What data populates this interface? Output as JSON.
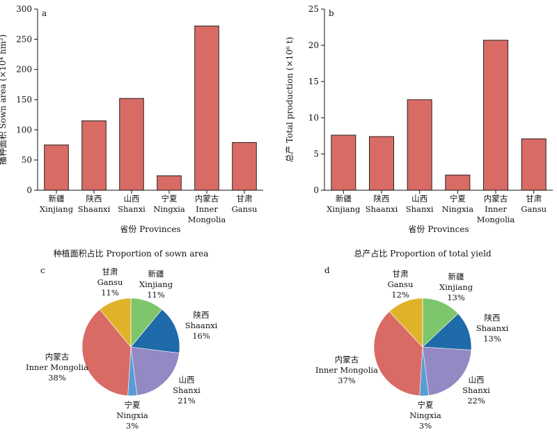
{
  "colors": {
    "bar_a": "#d96b65",
    "bar_b": "#d96b65",
    "axis": "#111111",
    "pie": [
      "#7dc66b",
      "#1f6aa9",
      "#9389c3",
      "#5b9bd5",
      "#d96b65",
      "#e0b22a"
    ]
  },
  "chart_data": [
    {
      "type": "bar",
      "panel": "a",
      "categories": [
        "新疆\nXinjiang",
        "陕西\nShaanxi",
        "山西\nShanxi",
        "宁夏\nNingxia",
        "内蒙古\nInner\nMongolia",
        "甘肃\nGansu"
      ],
      "values": [
        75,
        115,
        152,
        24,
        272,
        79
      ],
      "ylabel_cn": "播种面积",
      "ylabel_en": "Sown area (×10⁴ hm²)",
      "xlabel": "省份 Provinces",
      "ylim": [
        0,
        300
      ],
      "yticks": [
        0,
        50,
        100,
        150,
        200,
        250,
        300
      ]
    },
    {
      "type": "bar",
      "panel": "b",
      "categories": [
        "新疆\nXinjiang",
        "陕西\nShaanxi",
        "山西\nShanxi",
        "宁夏\nNingxia",
        "内蒙古\nInner\nMongolia",
        "甘肃\nGansu"
      ],
      "values": [
        7.6,
        7.4,
        12.5,
        2.1,
        20.7,
        7.1
      ],
      "ylabel_cn": "总产",
      "ylabel_en": "Total production (×10⁶ t)",
      "xlabel": "省份 Provinces",
      "ylim": [
        0,
        25
      ],
      "yticks": [
        0,
        5,
        10,
        15,
        20,
        25
      ]
    },
    {
      "type": "pie",
      "panel": "c",
      "title": "种植面积占比 Proportion of sown area",
      "slices": [
        {
          "cn": "新疆",
          "en": "Xinjiang",
          "pct": "11%",
          "value": 11
        },
        {
          "cn": "陕西",
          "en": "Shaanxi",
          "pct": "16%",
          "value": 16
        },
        {
          "cn": "山西",
          "en": "Shanxi",
          "pct": "21%",
          "value": 21
        },
        {
          "cn": "宁夏",
          "en": "Ningxia",
          "pct": "3%",
          "value": 3
        },
        {
          "cn": "内蒙古",
          "en": "Inner Mongolia",
          "pct": "38%",
          "value": 38
        },
        {
          "cn": "甘肃",
          "en": "Gansu",
          "pct": "11%",
          "value": 11
        }
      ]
    },
    {
      "type": "pie",
      "panel": "d",
      "title": "总产占比 Proportion of total yield",
      "slices": [
        {
          "cn": "新疆",
          "en": "Xinjiang",
          "pct": "13%",
          "value": 13
        },
        {
          "cn": "陕西",
          "en": "Shaanxi",
          "pct": "13%",
          "value": 13
        },
        {
          "cn": "山西",
          "en": "Shanxi",
          "pct": "22%",
          "value": 22
        },
        {
          "cn": "宁夏",
          "en": "Ningxia",
          "pct": "3%",
          "value": 3
        },
        {
          "cn": "内蒙古",
          "en": "Inner Mongolia",
          "pct": "37%",
          "value": 37
        },
        {
          "cn": "甘肃",
          "en": "Gansu",
          "pct": "12%",
          "value": 12
        }
      ]
    }
  ]
}
